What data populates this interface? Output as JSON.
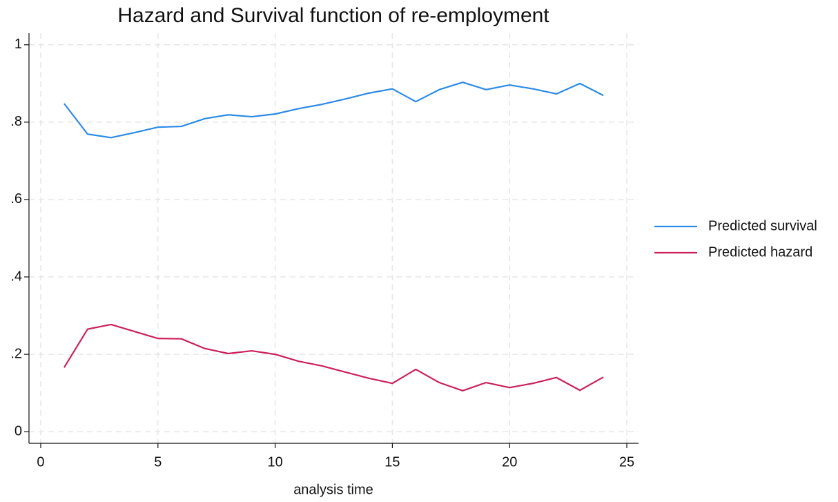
{
  "chart_data": {
    "type": "line",
    "title": "Hazard and Survival function of re-employment",
    "x_label": "analysis time",
    "x": [
      1,
      2,
      3,
      4,
      5,
      6,
      7,
      8,
      9,
      10,
      11,
      12,
      13,
      14,
      15,
      16,
      17,
      18,
      19,
      20,
      21,
      22,
      23,
      24
    ],
    "series": [
      {
        "name": "Predicted survival",
        "color": "#2a8ae6",
        "values": [
          0.848,
          0.769,
          0.76,
          0.773,
          0.787,
          0.789,
          0.809,
          0.819,
          0.814,
          0.821,
          0.835,
          0.846,
          0.86,
          0.875,
          0.886,
          0.853,
          0.884,
          0.903,
          0.884,
          0.896,
          0.886,
          0.873,
          0.9,
          0.869
        ]
      },
      {
        "name": "Predicted hazard",
        "color": "#cc1f5a",
        "values": [
          0.166,
          0.265,
          0.277,
          0.259,
          0.241,
          0.24,
          0.215,
          0.202,
          0.209,
          0.2,
          0.182,
          0.17,
          0.154,
          0.138,
          0.125,
          0.161,
          0.127,
          0.106,
          0.127,
          0.114,
          0.125,
          0.14,
          0.107,
          0.141
        ]
      }
    ],
    "xlim": [
      -0.5,
      25.5
    ],
    "xticks": [
      0,
      5,
      10,
      15,
      20,
      25
    ],
    "ylim": [
      -0.03,
      1.03
    ],
    "yticks": [
      0,
      {
        "value": 0.2,
        "label": ".2"
      },
      {
        "value": 0.4,
        "label": ".4"
      },
      {
        "value": 0.6,
        "label": ".6"
      },
      {
        "value": 0.8,
        "label": ".8"
      },
      1
    ],
    "grid": true,
    "legend": "right"
  }
}
